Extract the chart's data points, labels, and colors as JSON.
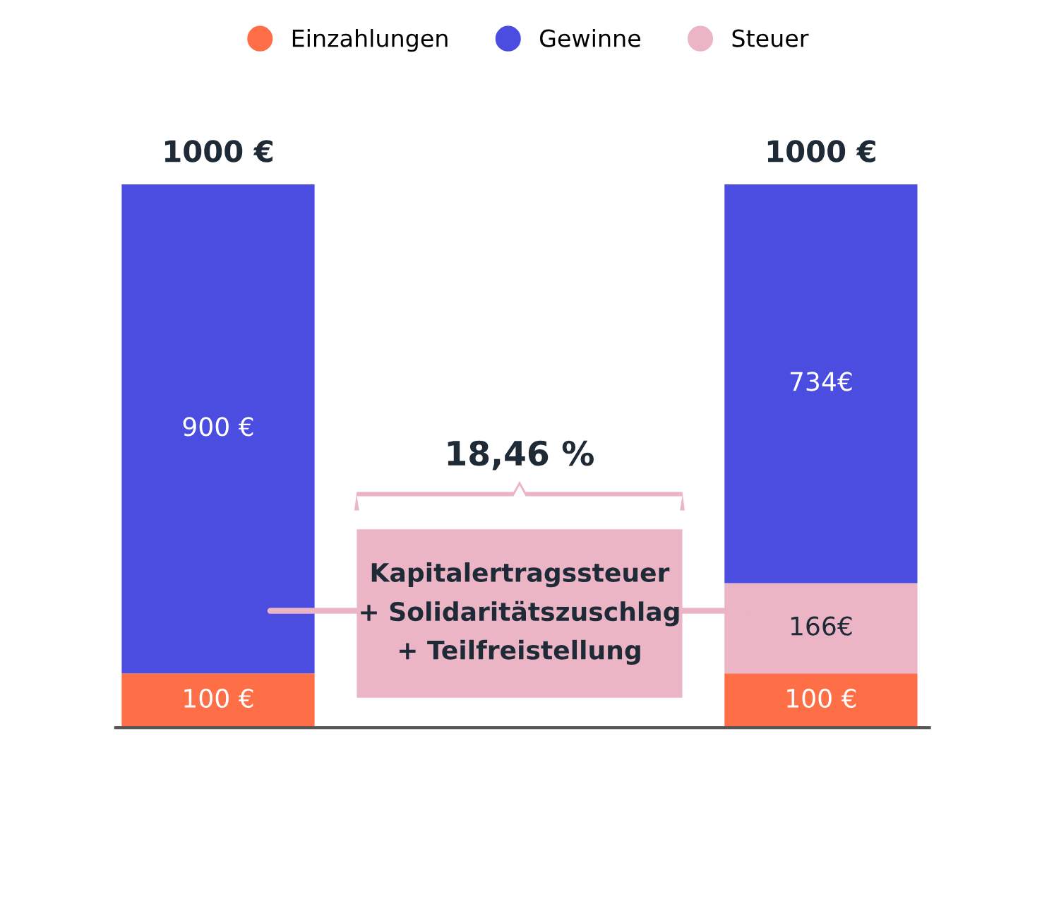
{
  "chart_data": {
    "type": "bar",
    "stacked": true,
    "categories": [
      null,
      null
    ],
    "series": [
      {
        "name": "Einzahlungen",
        "color": "#ff6f47",
        "values": [
          100,
          100
        ],
        "value_labels": [
          "100 €",
          "100 €"
        ]
      },
      {
        "name": "Steuer",
        "color": "#ebb5c6",
        "values": [
          null,
          166
        ],
        "value_labels": [
          null,
          "166€"
        ]
      },
      {
        "name": "Gewinne",
        "color": "#4a4de0",
        "values": [
          900,
          734
        ],
        "value_labels": [
          "900 €",
          "734€"
        ]
      }
    ],
    "totals": [
      "1000 €",
      "1000 €"
    ],
    "annotations": [
      "18,46 %",
      "Kapitalertragssteuer\n+ Solidaritätszuschlag\n+ Teilfreistellung"
    ],
    "legend": "top"
  }
}
